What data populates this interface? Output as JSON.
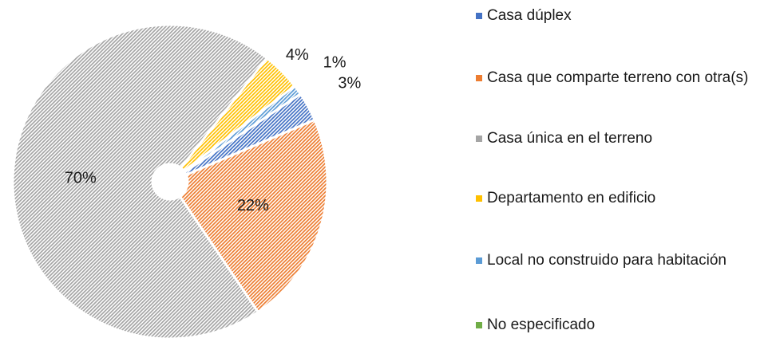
{
  "chart_data": {
    "type": "pie",
    "categories": [
      "Casa dúplex",
      "Casa que comparte terreno con otra(s)",
      "Casa única en el terreno",
      "Departamento en edificio",
      "Local no construido para habitación",
      "No especificado"
    ],
    "values": [
      3,
      22,
      70,
      4,
      1,
      0
    ],
    "value_labels": [
      "3%",
      "22%",
      "70%",
      "4%",
      "1%",
      null
    ],
    "colors": [
      "#4472c4",
      "#ed7d31",
      "#a5a5a5",
      "#ffc000",
      "#5b9bd5",
      "#70ad47"
    ],
    "legend": "right"
  }
}
